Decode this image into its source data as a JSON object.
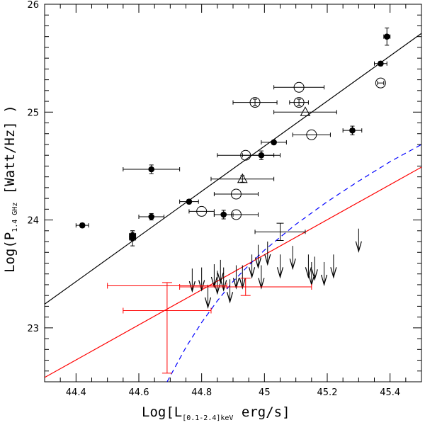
{
  "chart_data": {
    "type": "scatter",
    "title": "",
    "xlabel": {
      "prefix": "Log[L",
      "subscript": "[0.1-2.4]keV",
      "suffix": " erg/s]"
    },
    "ylabel": {
      "prefix": "Log(P",
      "subscript": "1.4 GHz",
      "suffix": " [Watt/Hz] )"
    },
    "xlim": [
      44.3,
      45.5
    ],
    "ylim": [
      22.5,
      26.0
    ],
    "x_major_ticks": [
      44.4,
      44.6,
      44.8,
      45.0,
      45.2,
      45.4
    ],
    "x_tick_labels": [
      "44.4",
      "44.6",
      "44.8",
      "45",
      "45.2",
      "45.4"
    ],
    "y_major_ticks": [
      23,
      24,
      25,
      26
    ],
    "y_tick_labels": [
      "23",
      "24",
      "25",
      "26"
    ],
    "x_minor_step": 0.05,
    "y_minor_step": 0.1,
    "colors": {
      "axis": "#000000",
      "fit": "#000000",
      "red": "#ff0000",
      "blue": "#0000ff"
    },
    "series": [
      {
        "name": "filled circles",
        "marker": "filled-circle",
        "points": [
          {
            "x": 44.42,
            "y": 23.95,
            "xerr": 0.02,
            "yerr": 0.02
          },
          {
            "x": 44.58,
            "y": 23.86,
            "xerr": 0.01,
            "yerr": 0.04
          },
          {
            "x": 44.58,
            "y": 23.83,
            "xerr": 0.01,
            "yerr": 0.07
          },
          {
            "x": 44.64,
            "y": 24.47,
            "xerr": 0.09,
            "yerr": 0.04
          },
          {
            "x": 44.64,
            "y": 24.03,
            "xerr": 0.04,
            "yerr": 0.03
          },
          {
            "x": 44.76,
            "y": 24.17,
            "xerr": 0.03,
            "yerr": 0.02
          },
          {
            "x": 44.87,
            "y": 24.05,
            "xerr": 0.03,
            "yerr": 0.04
          },
          {
            "x": 44.99,
            "y": 24.6,
            "xerr": 0.06,
            "yerr": 0.04
          },
          {
            "x": 45.03,
            "y": 24.72,
            "xerr": 0.04,
            "yerr": 0.02
          },
          {
            "x": 45.28,
            "y": 24.83,
            "xerr": 0.03,
            "yerr": 0.04
          },
          {
            "x": 45.37,
            "y": 25.45,
            "xerr": 0.02,
            "yerr": 0.02
          },
          {
            "x": 45.39,
            "y": 25.7,
            "xerr": 0.01,
            "yerr": 0.08
          }
        ]
      },
      {
        "name": "open circles",
        "marker": "open-circle",
        "points": [
          {
            "x": 44.8,
            "y": 24.08,
            "xerr": 0.04,
            "yerr": 0.0
          },
          {
            "x": 44.91,
            "y": 24.05,
            "xerr": 0.07,
            "yerr": 0.0
          },
          {
            "x": 44.91,
            "y": 24.24,
            "xerr": 0.07,
            "yerr": 0.0
          },
          {
            "x": 44.94,
            "y": 24.6,
            "xerr": 0.09,
            "yerr": 0.0
          },
          {
            "x": 44.97,
            "y": 25.09,
            "xerr": 0.07,
            "yerr": 0.03
          },
          {
            "x": 45.11,
            "y": 25.09,
            "xerr": 0.03,
            "yerr": 0.03
          },
          {
            "x": 45.11,
            "y": 25.23,
            "xerr": 0.08,
            "yerr": 0.0
          },
          {
            "x": 45.15,
            "y": 24.79,
            "xerr": 0.06,
            "yerr": 0.0
          },
          {
            "x": 45.37,
            "y": 25.27,
            "xerr": 0.01,
            "yerr": 0.0
          }
        ]
      },
      {
        "name": "triangles",
        "marker": "open-triangle",
        "points": [
          {
            "x": 44.93,
            "y": 24.38,
            "xerr": 0.1,
            "yerr": 0.03
          },
          {
            "x": 45.13,
            "y": 25.0,
            "xerr": 0.1,
            "yerr": 0.0
          }
        ]
      },
      {
        "name": "error-bar only",
        "marker": "none",
        "points": [
          {
            "x": 45.05,
            "y": 23.89,
            "xerr": 0.08,
            "yerr": 0.08
          }
        ]
      },
      {
        "name": "upper limits",
        "marker": "down-arrow",
        "points": [
          {
            "x": 44.77,
            "y": 23.55
          },
          {
            "x": 44.8,
            "y": 23.56
          },
          {
            "x": 44.82,
            "y": 23.4
          },
          {
            "x": 44.84,
            "y": 23.59
          },
          {
            "x": 44.85,
            "y": 23.53
          },
          {
            "x": 44.86,
            "y": 23.63
          },
          {
            "x": 44.87,
            "y": 23.56
          },
          {
            "x": 44.89,
            "y": 23.45
          },
          {
            "x": 44.91,
            "y": 23.58
          },
          {
            "x": 44.93,
            "y": 23.58
          },
          {
            "x": 44.96,
            "y": 23.68
          },
          {
            "x": 44.98,
            "y": 23.77
          },
          {
            "x": 44.99,
            "y": 23.58
          },
          {
            "x": 45.01,
            "y": 23.8
          },
          {
            "x": 45.05,
            "y": 23.68
          },
          {
            "x": 45.09,
            "y": 23.76
          },
          {
            "x": 45.14,
            "y": 23.68
          },
          {
            "x": 45.15,
            "y": 23.61
          },
          {
            "x": 45.16,
            "y": 23.66
          },
          {
            "x": 45.19,
            "y": 23.61
          },
          {
            "x": 45.22,
            "y": 23.68
          },
          {
            "x": 45.3,
            "y": 23.92
          }
        ]
      },
      {
        "name": "red errorbars",
        "marker": "none",
        "points": [
          {
            "x": 44.69,
            "y": 23.39,
            "xerr": 0.19,
            "yerr": 0.0
          },
          {
            "x": 44.69,
            "y": 23.16,
            "xerr": 0.14,
            "yerr": 0.0
          },
          {
            "x": 44.69,
            "y": 23.0,
            "xerr": 0.0,
            "yerr": 0.42
          },
          {
            "x": 44.94,
            "y": 23.38,
            "xerr": 0.21,
            "yerr": 0.08
          }
        ]
      }
    ],
    "lines": [
      {
        "name": "black fit",
        "style": "solid",
        "points": [
          [
            44.3,
            23.22
          ],
          [
            45.5,
            25.73
          ]
        ]
      },
      {
        "name": "red line",
        "style": "solid",
        "points": [
          [
            44.3,
            22.54
          ],
          [
            45.5,
            24.49
          ]
        ]
      },
      {
        "name": "blue dashed curve",
        "style": "dashed",
        "points": [
          [
            44.69,
            22.5
          ],
          [
            44.75,
            22.82
          ],
          [
            44.8,
            23.05
          ],
          [
            44.85,
            23.25
          ],
          [
            44.9,
            23.43
          ],
          [
            44.95,
            23.58
          ],
          [
            45.0,
            23.72
          ],
          [
            45.05,
            23.84
          ],
          [
            45.1,
            23.96
          ],
          [
            45.2,
            24.17
          ],
          [
            45.3,
            24.36
          ],
          [
            45.4,
            24.54
          ],
          [
            45.5,
            24.7
          ]
        ]
      }
    ]
  }
}
